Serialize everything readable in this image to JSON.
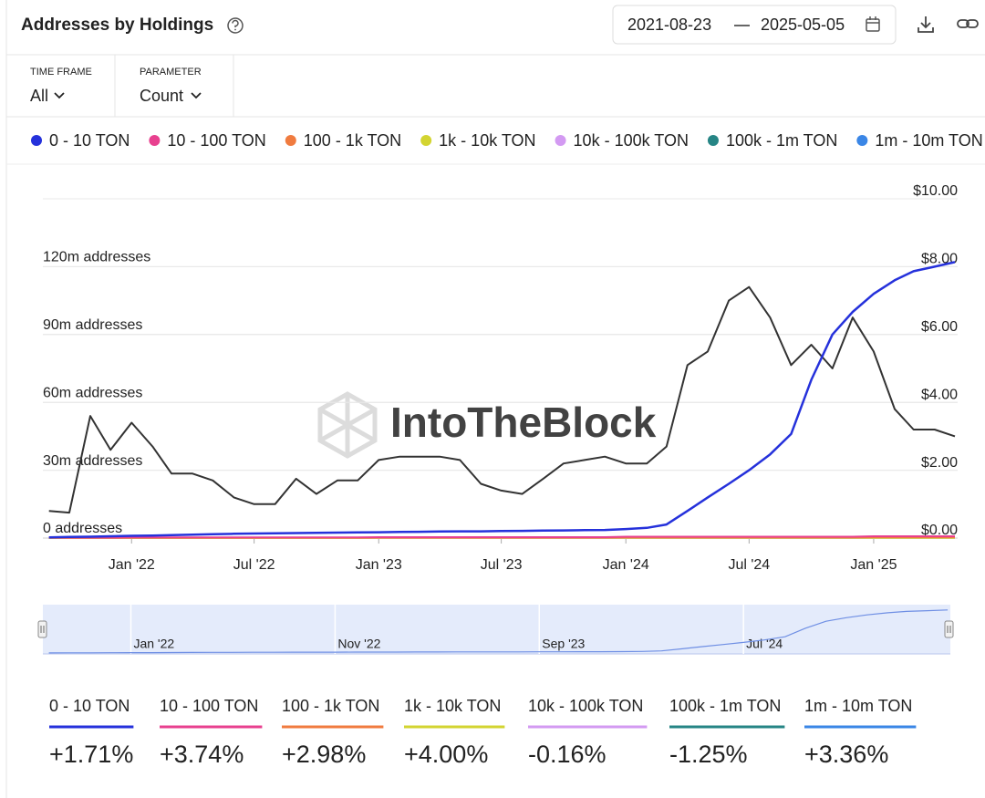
{
  "header": {
    "title": "Addresses by Holdings",
    "date_start": "2021-08-23",
    "date_end": "2025-05-05"
  },
  "controls": [
    {
      "label": "TIME FRAME",
      "value": "All"
    },
    {
      "label": "PARAMETER",
      "value": "Count"
    }
  ],
  "chart_data": {
    "type": "line",
    "watermark": "IntoTheBlock",
    "x": [
      "2021-09",
      "2021-10",
      "2021-11",
      "2021-12",
      "2022-01",
      "2022-02",
      "2022-03",
      "2022-04",
      "2022-05",
      "2022-06",
      "2022-07",
      "2022-08",
      "2022-09",
      "2022-10",
      "2022-11",
      "2022-12",
      "2023-01",
      "2023-02",
      "2023-03",
      "2023-04",
      "2023-05",
      "2023-06",
      "2023-07",
      "2023-08",
      "2023-09",
      "2023-10",
      "2023-11",
      "2023-12",
      "2024-01",
      "2024-02",
      "2024-03",
      "2024-04",
      "2024-05",
      "2024-06",
      "2024-07",
      "2024-08",
      "2024-09",
      "2024-10",
      "2024-11",
      "2024-12",
      "2025-01",
      "2025-02",
      "2025-03",
      "2025-04",
      "2025-05"
    ],
    "xlim": [
      "2021-08-23",
      "2025-05-05"
    ],
    "xticks": [
      {
        "value": "2022-01",
        "label": "Jan '22"
      },
      {
        "value": "2022-07",
        "label": "Jul '22"
      },
      {
        "value": "2023-01",
        "label": "Jan '23"
      },
      {
        "value": "2023-07",
        "label": "Jul '23"
      },
      {
        "value": "2024-01",
        "label": "Jan '24"
      },
      {
        "value": "2024-07",
        "label": "Jul '24"
      },
      {
        "value": "2025-01",
        "label": "Jan '25"
      }
    ],
    "ylim": [
      0,
      150
    ],
    "yticks": [
      {
        "value": 0,
        "label": "0 addresses"
      },
      {
        "value": 30,
        "label": "30m addresses"
      },
      {
        "value": 60,
        "label": "60m addresses"
      },
      {
        "value": 90,
        "label": "90m addresses"
      },
      {
        "value": 120,
        "label": "120m addresses"
      }
    ],
    "y2lim": [
      0,
      10
    ],
    "y2ticks": [
      {
        "value": 0,
        "label": "$0.00"
      },
      {
        "value": 2,
        "label": "$2.00"
      },
      {
        "value": 4,
        "label": "$4.00"
      },
      {
        "value": 6,
        "label": "$6.00"
      },
      {
        "value": 8,
        "label": "$8.00"
      },
      {
        "value": 10,
        "label": "$10.00"
      }
    ],
    "grid": true,
    "series": [
      {
        "name": "0 - 10 TON",
        "color": "#2531db",
        "values": [
          0.3,
          0.5,
          0.6,
          0.8,
          1.0,
          1.1,
          1.3,
          1.5,
          1.7,
          1.9,
          2.0,
          2.1,
          2.2,
          2.3,
          2.4,
          2.5,
          2.6,
          2.7,
          2.8,
          2.9,
          3.0,
          3.0,
          3.1,
          3.2,
          3.3,
          3.4,
          3.5,
          3.6,
          4.0,
          4.5,
          6,
          12,
          18,
          24,
          30,
          37,
          46,
          70,
          90,
          100,
          108,
          114,
          118,
          120,
          122
        ]
      },
      {
        "name": "10 - 100 TON",
        "color": "#e8408f",
        "values": [
          0.2,
          0.2,
          0.2,
          0.2,
          0.3,
          0.3,
          0.3,
          0.3,
          0.3,
          0.3,
          0.3,
          0.3,
          0.3,
          0.3,
          0.3,
          0.3,
          0.4,
          0.4,
          0.4,
          0.4,
          0.4,
          0.4,
          0.4,
          0.4,
          0.4,
          0.4,
          0.4,
          0.4,
          0.6,
          0.6,
          0.6,
          0.6,
          0.6,
          0.6,
          0.6,
          0.6,
          0.6,
          0.6,
          0.6,
          0.6,
          0.8,
          0.8,
          0.8,
          0.8,
          0.8
        ]
      },
      {
        "name": "100 - 1k TON",
        "color": "#f07b3f",
        "values": [
          0.1,
          0.1,
          0.1,
          0.1,
          0.15,
          0.15,
          0.15,
          0.15,
          0.15,
          0.15,
          0.15,
          0.15,
          0.15,
          0.15,
          0.15,
          0.15,
          0.2,
          0.2,
          0.2,
          0.2,
          0.2,
          0.2,
          0.2,
          0.2,
          0.2,
          0.2,
          0.2,
          0.2,
          0.3,
          0.3,
          0.3,
          0.3,
          0.3,
          0.3,
          0.3,
          0.3,
          0.3,
          0.3,
          0.3,
          0.3,
          0.4,
          0.4,
          0.4,
          0.4,
          0.4
        ]
      },
      {
        "name": "1k - 10k TON",
        "color": "#d3d431",
        "values": [
          0.05,
          0.05,
          0.05,
          0.05,
          0.06,
          0.06,
          0.06,
          0.06,
          0.06,
          0.06,
          0.06,
          0.06,
          0.06,
          0.06,
          0.06,
          0.06,
          0.08,
          0.08,
          0.08,
          0.08,
          0.08,
          0.08,
          0.08,
          0.08,
          0.08,
          0.08,
          0.08,
          0.08,
          0.1,
          0.1,
          0.1,
          0.1,
          0.1,
          0.1,
          0.1,
          0.1,
          0.1,
          0.1,
          0.1,
          0.1,
          0.12,
          0.12,
          0.12,
          0.12,
          0.12
        ]
      },
      {
        "name": "10k - 100k TON",
        "color": "#d39af2",
        "values": [
          0.02,
          0.02,
          0.02,
          0.02,
          0.02,
          0.02,
          0.02,
          0.02,
          0.02,
          0.02,
          0.02,
          0.02,
          0.02,
          0.02,
          0.02,
          0.02,
          0.02,
          0.02,
          0.02,
          0.02,
          0.02,
          0.02,
          0.02,
          0.02,
          0.02,
          0.02,
          0.02,
          0.02,
          0.02,
          0.02,
          0.02,
          0.02,
          0.02,
          0.02,
          0.02,
          0.02,
          0.02,
          0.02,
          0.02,
          0.02,
          0.02,
          0.02,
          0.02,
          0.02,
          0.02
        ]
      },
      {
        "name": "100k - 1m TON",
        "color": "#268585",
        "values": [
          0.01,
          0.01,
          0.01,
          0.01,
          0.01,
          0.01,
          0.01,
          0.01,
          0.01,
          0.01,
          0.01,
          0.01,
          0.01,
          0.01,
          0.01,
          0.01,
          0.01,
          0.01,
          0.01,
          0.01,
          0.01,
          0.01,
          0.01,
          0.01,
          0.01,
          0.01,
          0.01,
          0.01,
          0.01,
          0.01,
          0.01,
          0.01,
          0.01,
          0.01,
          0.01,
          0.01,
          0.01,
          0.01,
          0.01,
          0.01,
          0.01,
          0.01,
          0.01,
          0.01,
          0.01
        ]
      },
      {
        "name": "1m - 10m TON",
        "color": "#3a86e6",
        "values": [
          0.001,
          0.001,
          0.001,
          0.001,
          0.001,
          0.001,
          0.001,
          0.001,
          0.001,
          0.001,
          0.001,
          0.001,
          0.001,
          0.001,
          0.001,
          0.001,
          0.001,
          0.001,
          0.001,
          0.001,
          0.001,
          0.001,
          0.001,
          0.001,
          0.001,
          0.001,
          0.001,
          0.001,
          0.001,
          0.001,
          0.001,
          0.001,
          0.001,
          0.001,
          0.001,
          0.001,
          0.001,
          0.001,
          0.001,
          0.001,
          0.001,
          0.001,
          0.001,
          0.001,
          0.001
        ]
      },
      {
        "color": "#333333",
        "axis": "y2",
        "values": [
          0.8,
          0.75,
          3.6,
          2.6,
          3.4,
          2.7,
          1.9,
          1.9,
          1.7,
          1.2,
          1.0,
          1.0,
          1.75,
          1.3,
          1.7,
          1.7,
          2.3,
          2.4,
          2.4,
          2.4,
          2.3,
          1.6,
          1.4,
          1.3,
          1.75,
          2.2,
          2.3,
          2.4,
          2.2,
          2.2,
          2.7,
          5.1,
          5.5,
          7.0,
          7.4,
          6.5,
          5.1,
          5.7,
          5.0,
          6.5,
          5.5,
          3.8,
          3.2,
          3.2,
          3.0
        ]
      }
    ]
  },
  "navigator": {
    "xticks": [
      {
        "value": "2022-01",
        "label": "Jan '22"
      },
      {
        "value": "2022-11",
        "label": "Nov '22"
      },
      {
        "value": "2023-09",
        "label": "Sep '23"
      },
      {
        "value": "2024-07",
        "label": "Jul '24"
      }
    ]
  },
  "summary": [
    {
      "name": "0 - 10 TON",
      "change": "+1.71%"
    },
    {
      "name": "10 - 100 TON",
      "change": "+3.74%"
    },
    {
      "name": "100 - 1k TON",
      "change": "+2.98%"
    },
    {
      "name": "1k - 10k TON",
      "change": "+4.00%"
    },
    {
      "name": "10k - 100k TON",
      "change": "-0.16%"
    },
    {
      "name": "100k - 1m TON",
      "change": "-1.25%"
    },
    {
      "name": "1m - 10m TON",
      "change": "+3.36%"
    }
  ]
}
